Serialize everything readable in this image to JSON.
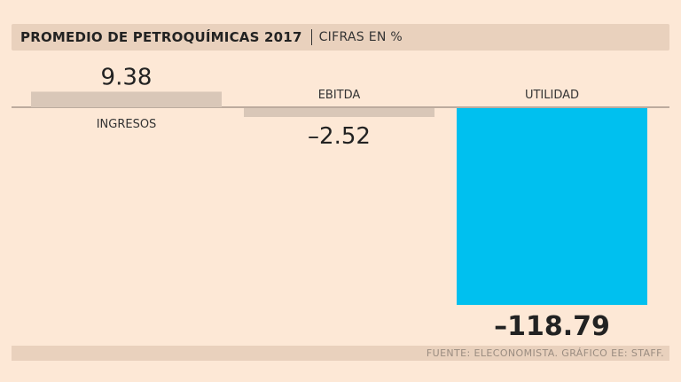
{
  "header": {
    "title": "PROMEDIO DE PETROQUÍMICAS 2017",
    "subtitle": "CIFRAS EN %"
  },
  "footer": {
    "source": "FUENTE: ELECONOMISTA. GRÁFICO EE: STAFF."
  },
  "colors": {
    "background": "#fde8d6",
    "bar_default": "#d9c7b8",
    "bar_highlight": "#00c0ef",
    "panel": "#e9d1bd"
  },
  "chart_data": {
    "type": "bar",
    "categories": [
      "INGRESOS",
      "EBITDA",
      "UTILIDAD"
    ],
    "values": [
      9.38,
      -2.52,
      -118.79
    ],
    "value_labels": [
      "9.38",
      "–2.52",
      "–118.79"
    ],
    "highlight": [
      false,
      false,
      true
    ],
    "title": "PROMEDIO DE PETROQUÍMICAS 2017",
    "subtitle": "CIFRAS EN %",
    "xlabel": "",
    "ylabel": "",
    "ylim": [
      -118.79,
      9.38
    ],
    "grid": false,
    "legend": "none"
  }
}
